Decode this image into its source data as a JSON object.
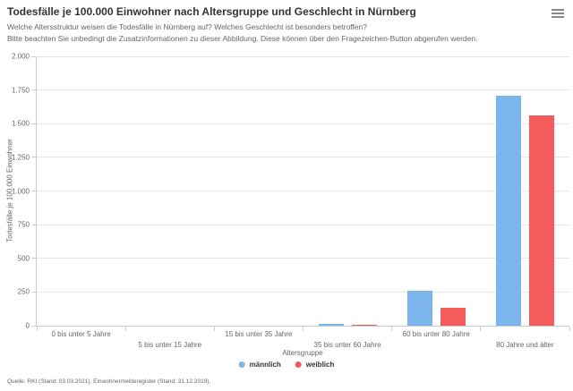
{
  "header": {
    "title": "Todesfälle je 100.000 Einwohner nach Altersgruppe und Geschlecht in Nürnberg",
    "subtitle_line1": "Welche Altersstruktur weisen die Todesfälle in Nürnberg auf? Welches Geschlecht ist besonders betroffen?",
    "subtitle_line2": "Bitte beachten Sie unbedingt die Zusatzinformationen zu dieser Abbildung. Diese können über den Fragezeichen-Button abgerufen werden.",
    "menu_icon": "hamburger-icon"
  },
  "chart_data": {
    "type": "bar",
    "title": "Todesfälle je 100.000 Einwohner nach Altersgruppe und Geschlecht in Nürnberg",
    "categories": [
      "0 bis unter 5 Jahre",
      "5 bis unter 15 Jahre",
      "15 bis unter 35 Jahre",
      "35 bis unter 60 Jahre",
      "60 bis unter 80 Jahre",
      "80 Jahre und älter"
    ],
    "series": [
      {
        "name": "männlich",
        "color": "#7cb5ec",
        "values": [
          0,
          0,
          0,
          14,
          260,
          1710
        ]
      },
      {
        "name": "weiblich",
        "color": "#f45b5b",
        "values": [
          0,
          0,
          0,
          7,
          133,
          1560
        ]
      }
    ],
    "xlabel": "Altersgruppe",
    "ylabel": "Todesfälle je 100.000 Einwohner",
    "ylim": [
      0,
      2000
    ],
    "ytick_step": 250,
    "ytick_labels": [
      "0",
      "250",
      "500",
      "750",
      "1.000",
      "1.250",
      "1.500",
      "1.750",
      "2.000"
    ],
    "grid": true,
    "legend_position": "bottom-center",
    "x_labels_staggered": true
  },
  "footer": {
    "source": "Quelle: RKI (Stand: 03.03.2021), Einwohnermelderegister (Stand: 31.12.2019)."
  }
}
